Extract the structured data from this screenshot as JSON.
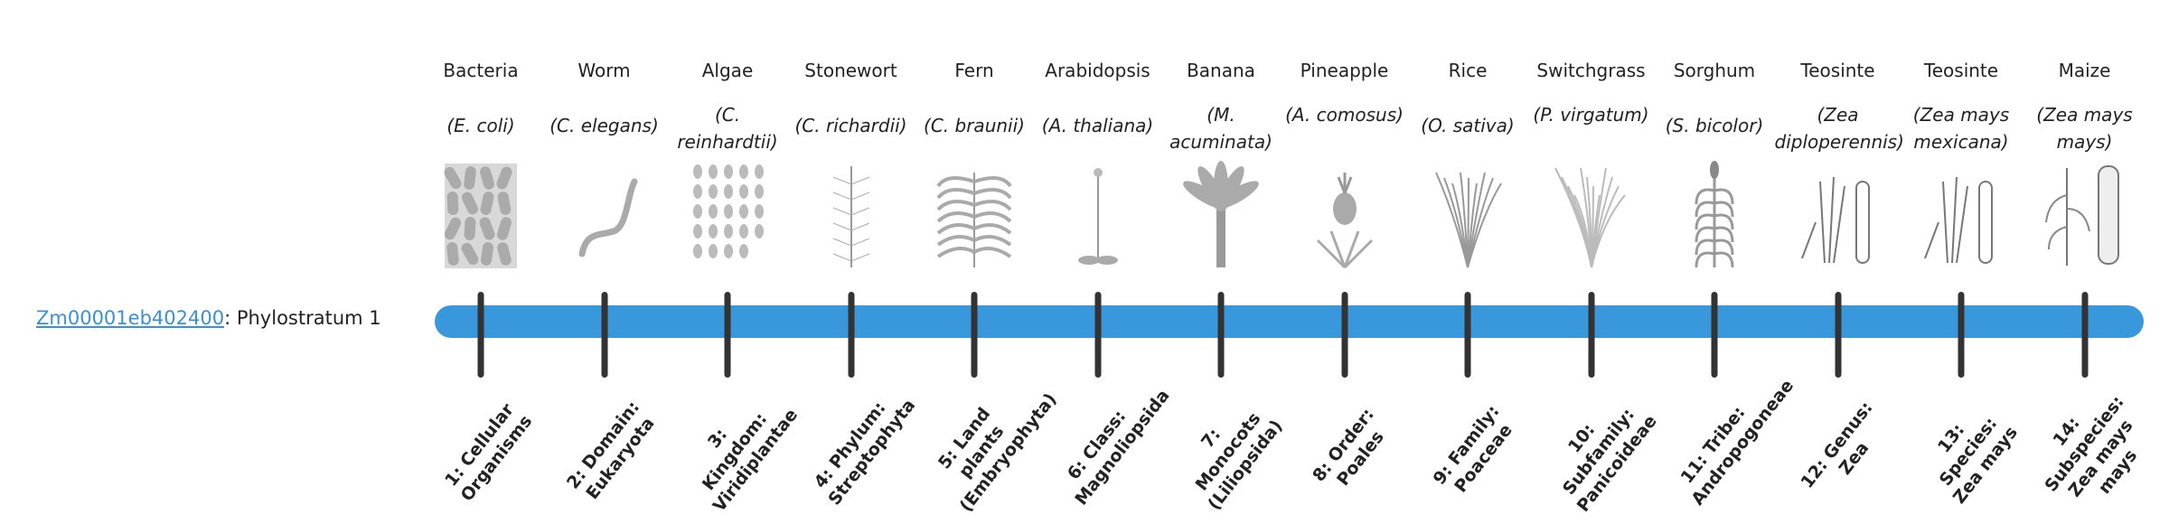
{
  "gene": {
    "id": "Zm00001eb402400",
    "separator": ":",
    "label": "Phylostratum 1"
  },
  "colors": {
    "bar": "#3898db",
    "link": "#3a8fd9",
    "tick": "#333333"
  },
  "strata": [
    {
      "common": "Bacteria",
      "scientific": "(E. coli)",
      "icon": "bacteria-icon",
      "rank": "1: Cellular Organisms"
    },
    {
      "common": "Worm",
      "scientific": "(C. elegans)",
      "icon": "worm-icon",
      "rank": "2: Domain: Eukaryota"
    },
    {
      "common": "Algae",
      "scientific": "(C. reinhardtii)",
      "icon": "algae-icon",
      "rank": "3: Kingdom: Viridiplantae"
    },
    {
      "common": "Stonewort",
      "scientific": "(C. richardii)",
      "icon": "stonewort-icon",
      "rank": "4: Phylum: Streptophyta"
    },
    {
      "common": "Fern",
      "scientific": "(C. braunii)",
      "icon": "fern-icon",
      "rank": "5: Land plants (Embryophyta)"
    },
    {
      "common": "Arabidopsis",
      "scientific": "(A. thaliana)",
      "icon": "arabidopsis-icon",
      "rank": "6: Class: Magnoliopsida"
    },
    {
      "common": "Banana",
      "scientific": "(M. acuminata)",
      "icon": "banana-icon",
      "rank": "7: Monocots (Liliopsida)"
    },
    {
      "common": "Pineapple",
      "scientific": "(A. comosus)",
      "icon": "pineapple-icon",
      "rank": "8: Order: Poales"
    },
    {
      "common": "Rice",
      "scientific": "(O. sativa)",
      "icon": "rice-icon",
      "rank": "9: Family: Poaceae"
    },
    {
      "common": "Switchgrass",
      "scientific": "(P. virgatum)",
      "icon": "switchgrass-icon",
      "rank": "10: Subfamily: Panicoideae"
    },
    {
      "common": "Sorghum",
      "scientific": "(S. bicolor)",
      "icon": "sorghum-icon",
      "rank": "11: Tribe: Andropogoneae"
    },
    {
      "common": "Teosinte",
      "scientific": "(Zea diploperennis)",
      "icon": "teosinte-icon",
      "rank": "12: Genus: Zea"
    },
    {
      "common": "Teosinte",
      "scientific": "(Zea mays mexicana)",
      "icon": "teosinte-icon",
      "rank": "13: Species: Zea mays"
    },
    {
      "common": "Maize",
      "scientific": "(Zea mays mays)",
      "icon": "maize-icon",
      "rank": "14: Subspecies: Zea mays mays"
    }
  ]
}
